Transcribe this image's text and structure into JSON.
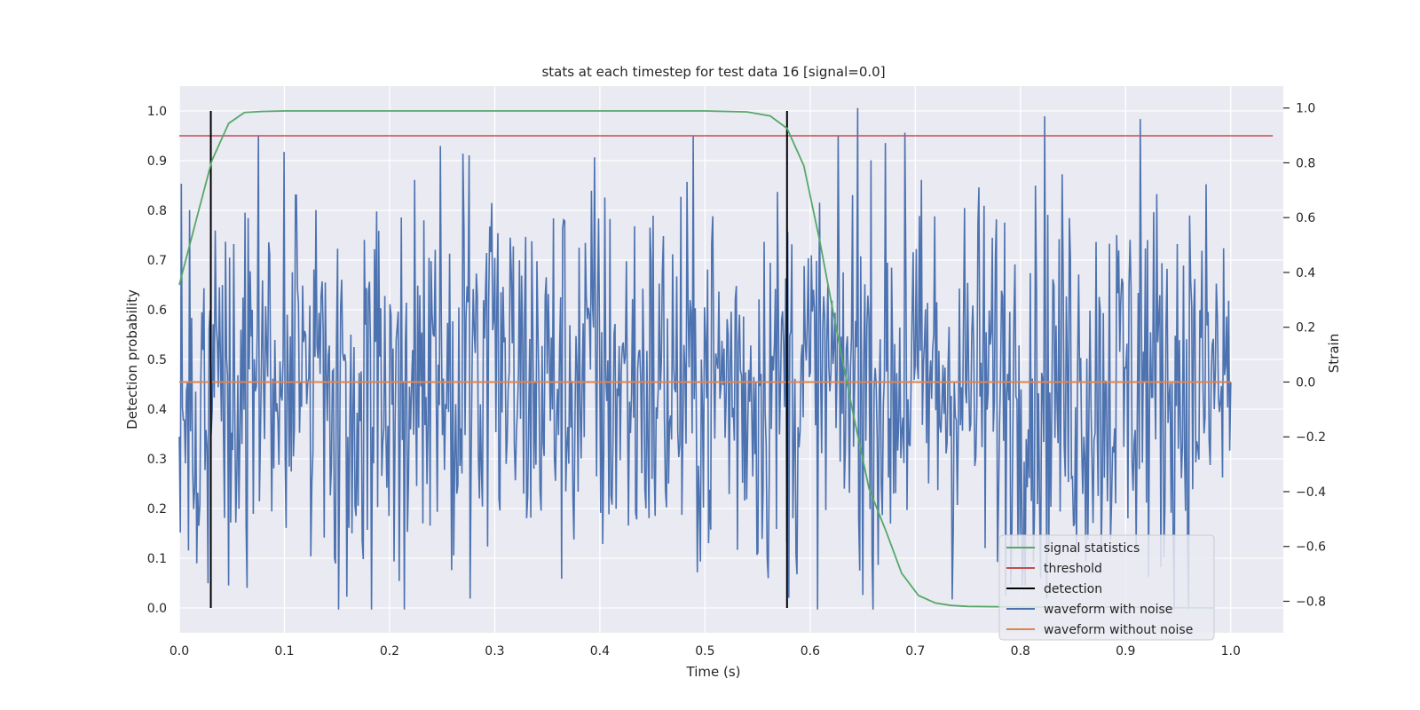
{
  "chart_data": {
    "type": "line",
    "title": "stats at each timestep for test data 16 [signal=0.0]",
    "xlabel": "Time (s)",
    "ylabel_left": "Detection probability",
    "ylabel_right": "Strain",
    "xlim": [
      0.0,
      1.05
    ],
    "ylim_left": [
      -0.05,
      1.05
    ],
    "ylim_right": [
      -0.915,
      1.08
    ],
    "x_ticks": [
      0.0,
      0.1,
      0.2,
      0.3,
      0.4,
      0.5,
      0.6,
      0.7,
      0.8,
      0.9,
      1.0
    ],
    "x_tick_labels": [
      "0.0",
      "0.1",
      "0.2",
      "0.3",
      "0.4",
      "0.5",
      "0.6",
      "0.7",
      "0.8",
      "0.9",
      "1.0"
    ],
    "y_left_ticks": [
      0.0,
      0.1,
      0.2,
      0.3,
      0.4,
      0.5,
      0.6,
      0.7,
      0.8,
      0.9,
      1.0
    ],
    "y_left_tick_labels": [
      "0.0",
      "0.1",
      "0.2",
      "0.3",
      "0.4",
      "0.5",
      "0.6",
      "0.7",
      "0.8",
      "0.9",
      "1.0"
    ],
    "y_right_ticks": [
      -0.8,
      -0.6,
      -0.4,
      -0.2,
      0.0,
      0.2,
      0.4,
      0.6,
      0.8,
      1.0
    ],
    "y_right_tick_labels": [
      "−0.8",
      "−0.6",
      "−0.4",
      "−0.2",
      "0.0",
      "0.2",
      "0.4",
      "0.6",
      "0.8",
      "1.0"
    ],
    "grid": true,
    "legend_position": "lower-right",
    "colors": {
      "background": "#eaeaf2",
      "grid": "#ffffff",
      "signal": "#55a868",
      "threshold": "#c44e52",
      "detection": "#000000",
      "waveform_noise": "#4c72b0",
      "waveform_clean": "#dd8452"
    },
    "series": [
      {
        "name": "signal statistics",
        "axis": "left",
        "x": [
          0.0,
          0.016,
          0.031,
          0.047,
          0.062,
          0.078,
          0.1,
          0.2,
          0.3,
          0.4,
          0.5,
          0.54,
          0.562,
          0.578,
          0.594,
          0.609,
          0.625,
          0.641,
          0.656,
          0.672,
          0.687,
          0.703,
          0.719,
          0.734,
          0.75,
          0.8,
          0.9,
          0.984
        ],
        "y": [
          0.65,
          0.78,
          0.9,
          0.975,
          0.997,
          0.999,
          1.0,
          1.0,
          1.0,
          1.0,
          1.0,
          0.998,
          0.99,
          0.965,
          0.89,
          0.74,
          0.56,
          0.39,
          0.24,
          0.155,
          0.07,
          0.025,
          0.01,
          0.005,
          0.003,
          0.002,
          0.001,
          0.0
        ]
      },
      {
        "name": "threshold",
        "axis": "left",
        "x": [
          0.0,
          1.04
        ],
        "y": [
          0.95,
          0.95
        ]
      },
      {
        "name": "detection",
        "axis": "left",
        "lines_at_x": [
          0.03,
          0.578
        ],
        "y_range": [
          0.0,
          1.0
        ]
      },
      {
        "name": "waveform with noise",
        "axis": "right",
        "x_range": [
          0.0,
          1.0
        ],
        "n_samples": 1024,
        "approx_range": [
          -0.83,
          1.0
        ],
        "note_peaks": [
          [
            0.1,
            0.84
          ],
          [
            0.395,
            0.82
          ],
          [
            0.645,
            1.0
          ],
          [
            0.69,
            0.91
          ],
          [
            0.823,
            0.97
          ],
          [
            0.914,
            0.96
          ],
          [
            0.183,
            -0.83
          ]
        ]
      },
      {
        "name": "waveform without noise",
        "axis": "right",
        "x": [
          0.0,
          1.0
        ],
        "y": [
          0.0,
          0.0
        ]
      }
    ]
  }
}
